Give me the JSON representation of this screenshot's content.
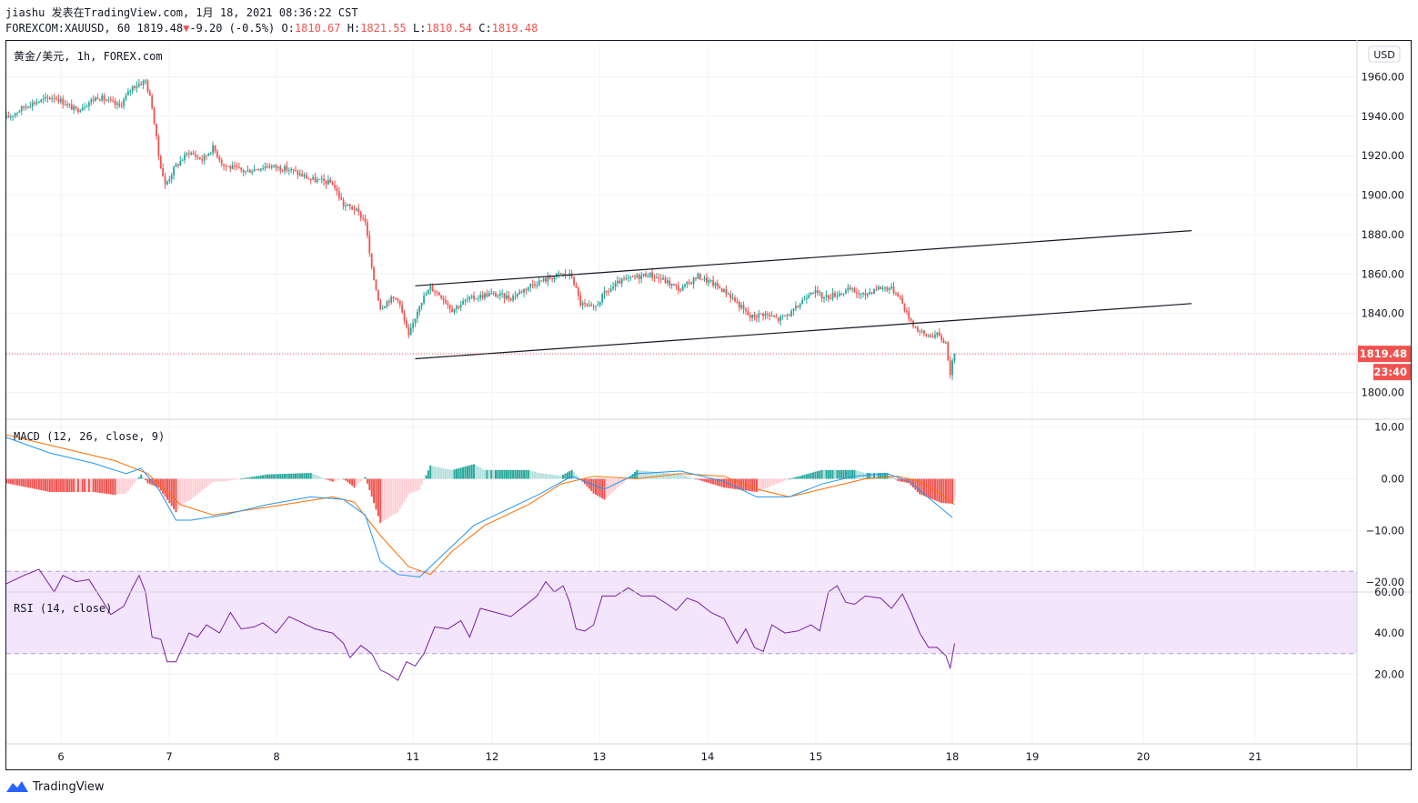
{
  "header": {
    "line1": "jiashu 发表在TradingView.com, 1月 18, 2021 08:36:22 CST",
    "symbol_info": "FOREXCOM:XAUUSD, 60 1819.48",
    "change_arrow": "▼",
    "change": "-9.20 (-0.5%)",
    "o_label": "O:",
    "o_value": "1810.67",
    "h_label": "H:",
    "h_value": "1821.55",
    "l_label": "L:",
    "l_value": "1810.54",
    "c_label": "C:",
    "c_value": "1819.48"
  },
  "main_pane": {
    "title": "黄金/美元, 1h, FOREX.com",
    "currency": "USD",
    "last_price": "1819.48",
    "countdown": "23:40"
  },
  "macd_pane": {
    "title": "MACD (12, 26, close, 9)"
  },
  "rsi_pane": {
    "title": "RSI (14, close)"
  },
  "footer": {
    "brand": "TradingView",
    "logo_icon": "tradingview-logo-icon"
  },
  "colors": {
    "up": "#26a69a",
    "down": "#ef5350",
    "macd": "#2196f3",
    "signal": "#ff6d00",
    "rsi": "#7b1fa2",
    "rsi_band": "#f3e5fb"
  },
  "chart_data": [
    {
      "type": "candlestick",
      "title": "黄金/美元, 1h, FOREX.com",
      "y_ticks": [
        "1800.00",
        "1820.00",
        "1840.00",
        "1860.00",
        "1880.00",
        "1900.00",
        "1920.00",
        "1940.00",
        "1960.00"
      ],
      "x_ticks": [
        "6",
        "7",
        "8",
        "11",
        "12",
        "13",
        "14",
        "15",
        "18",
        "19",
        "20",
        "21"
      ],
      "ylim": [
        1790,
        1968
      ],
      "last_price": 1819.48,
      "close_path": [
        {
          "x": 0,
          "y": 1939
        },
        {
          "x": 10,
          "y": 1946
        },
        {
          "x": 22,
          "y": 1950
        },
        {
          "x": 32,
          "y": 1943
        },
        {
          "x": 42,
          "y": 1950
        },
        {
          "x": 52,
          "y": 1945
        },
        {
          "x": 58,
          "y": 1955
        },
        {
          "x": 64,
          "y": 1958
        },
        {
          "x": 67,
          "y": 1945
        },
        {
          "x": 70,
          "y": 1920
        },
        {
          "x": 73,
          "y": 1905
        },
        {
          "x": 78,
          "y": 1915
        },
        {
          "x": 84,
          "y": 1922
        },
        {
          "x": 90,
          "y": 1918
        },
        {
          "x": 95,
          "y": 1924
        },
        {
          "x": 100,
          "y": 1915
        },
        {
          "x": 110,
          "y": 1912
        },
        {
          "x": 120,
          "y": 1915
        },
        {
          "x": 130,
          "y": 1913
        },
        {
          "x": 140,
          "y": 1908
        },
        {
          "x": 150,
          "y": 1906
        },
        {
          "x": 155,
          "y": 1895
        },
        {
          "x": 160,
          "y": 1893
        },
        {
          "x": 165,
          "y": 1887
        },
        {
          "x": 168,
          "y": 1862
        },
        {
          "x": 172,
          "y": 1843
        },
        {
          "x": 176,
          "y": 1847
        },
        {
          "x": 180,
          "y": 1848
        },
        {
          "x": 185,
          "y": 1828
        },
        {
          "x": 190,
          "y": 1845
        },
        {
          "x": 195,
          "y": 1853
        },
        {
          "x": 200,
          "y": 1849
        },
        {
          "x": 205,
          "y": 1842
        },
        {
          "x": 212,
          "y": 1847
        },
        {
          "x": 222,
          "y": 1850
        },
        {
          "x": 232,
          "y": 1848
        },
        {
          "x": 242,
          "y": 1855
        },
        {
          "x": 250,
          "y": 1858
        },
        {
          "x": 255,
          "y": 1860
        },
        {
          "x": 260,
          "y": 1859
        },
        {
          "x": 264,
          "y": 1845
        },
        {
          "x": 270,
          "y": 1842
        },
        {
          "x": 275,
          "y": 1850
        },
        {
          "x": 282,
          "y": 1856
        },
        {
          "x": 288,
          "y": 1858
        },
        {
          "x": 295,
          "y": 1860
        },
        {
          "x": 302,
          "y": 1857
        },
        {
          "x": 310,
          "y": 1852
        },
        {
          "x": 318,
          "y": 1859
        },
        {
          "x": 325,
          "y": 1855
        },
        {
          "x": 332,
          "y": 1850
        },
        {
          "x": 338,
          "y": 1843
        },
        {
          "x": 342,
          "y": 1838
        },
        {
          "x": 348,
          "y": 1840
        },
        {
          "x": 355,
          "y": 1837
        },
        {
          "x": 362,
          "y": 1841
        },
        {
          "x": 370,
          "y": 1852
        },
        {
          "x": 376,
          "y": 1848
        },
        {
          "x": 382,
          "y": 1850
        },
        {
          "x": 388,
          "y": 1852
        },
        {
          "x": 394,
          "y": 1849
        },
        {
          "x": 400,
          "y": 1853
        },
        {
          "x": 406,
          "y": 1853
        },
        {
          "x": 410,
          "y": 1850
        },
        {
          "x": 414,
          "y": 1840
        },
        {
          "x": 418,
          "y": 1833
        },
        {
          "x": 422,
          "y": 1829
        },
        {
          "x": 428,
          "y": 1829
        },
        {
          "x": 432,
          "y": 1825
        },
        {
          "x": 434,
          "y": 1810
        },
        {
          "x": 436,
          "y": 1819.48
        }
      ],
      "annotations": [
        {
          "type": "trendline",
          "points": [
            {
              "x": 188,
              "y": 1854
            },
            {
              "x": 545,
              "y": 1882
            }
          ]
        },
        {
          "type": "trendline",
          "points": [
            {
              "x": 188,
              "y": 1817
            },
            {
              "x": 545,
              "y": 1845
            }
          ]
        }
      ]
    },
    {
      "type": "histogram+line",
      "title": "MACD (12, 26, close, 9)",
      "y_ticks": [
        "10.00",
        "0.00",
        "−10.00",
        "−20.00"
      ],
      "ylim": [
        -22,
        11
      ],
      "macd": [
        {
          "x": 0,
          "y": 8
        },
        {
          "x": 20,
          "y": 5
        },
        {
          "x": 40,
          "y": 3
        },
        {
          "x": 55,
          "y": 1
        },
        {
          "x": 62,
          "y": 2
        },
        {
          "x": 70,
          "y": -2
        },
        {
          "x": 78,
          "y": -8
        },
        {
          "x": 85,
          "y": -8
        },
        {
          "x": 100,
          "y": -7
        },
        {
          "x": 120,
          "y": -5
        },
        {
          "x": 140,
          "y": -3.5
        },
        {
          "x": 155,
          "y": -4
        },
        {
          "x": 165,
          "y": -7
        },
        {
          "x": 172,
          "y": -16
        },
        {
          "x": 180,
          "y": -18.5
        },
        {
          "x": 190,
          "y": -19
        },
        {
          "x": 200,
          "y": -15
        },
        {
          "x": 215,
          "y": -9
        },
        {
          "x": 230,
          "y": -6
        },
        {
          "x": 245,
          "y": -3
        },
        {
          "x": 260,
          "y": 0.5
        },
        {
          "x": 275,
          "y": -2
        },
        {
          "x": 290,
          "y": 1
        },
        {
          "x": 310,
          "y": 1.5
        },
        {
          "x": 330,
          "y": -0.5
        },
        {
          "x": 345,
          "y": -3.5
        },
        {
          "x": 360,
          "y": -3.5
        },
        {
          "x": 375,
          "y": -1
        },
        {
          "x": 390,
          "y": 0.5
        },
        {
          "x": 405,
          "y": 1
        },
        {
          "x": 415,
          "y": -0.5
        },
        {
          "x": 425,
          "y": -4
        },
        {
          "x": 435,
          "y": -7.5
        }
      ],
      "signal": [
        {
          "x": 0,
          "y": 8.5
        },
        {
          "x": 25,
          "y": 6
        },
        {
          "x": 50,
          "y": 3.5
        },
        {
          "x": 65,
          "y": 1
        },
        {
          "x": 80,
          "y": -5
        },
        {
          "x": 95,
          "y": -7
        },
        {
          "x": 120,
          "y": -5.5
        },
        {
          "x": 150,
          "y": -3.5
        },
        {
          "x": 160,
          "y": -4.5
        },
        {
          "x": 172,
          "y": -11
        },
        {
          "x": 185,
          "y": -17
        },
        {
          "x": 195,
          "y": -18.5
        },
        {
          "x": 205,
          "y": -14
        },
        {
          "x": 220,
          "y": -9
        },
        {
          "x": 240,
          "y": -5
        },
        {
          "x": 255,
          "y": -1
        },
        {
          "x": 270,
          "y": 0.5
        },
        {
          "x": 290,
          "y": 0
        },
        {
          "x": 310,
          "y": 1
        },
        {
          "x": 330,
          "y": 0.5
        },
        {
          "x": 345,
          "y": -2
        },
        {
          "x": 360,
          "y": -3.5
        },
        {
          "x": 375,
          "y": -2
        },
        {
          "x": 395,
          "y": 0
        },
        {
          "x": 410,
          "y": 0.5
        },
        {
          "x": 420,
          "y": -0.5
        },
        {
          "x": 430,
          "y": -3
        },
        {
          "x": 436,
          "y": -5
        }
      ]
    },
    {
      "type": "line",
      "title": "RSI (14, close)",
      "y_ticks": [
        "60.00",
        "40.00",
        "20.00"
      ],
      "ylim": [
        13,
        75
      ],
      "bands": [
        30,
        70
      ],
      "values": [
        {
          "x": 0,
          "y": 64
        },
        {
          "x": 8,
          "y": 68
        },
        {
          "x": 15,
          "y": 71
        },
        {
          "x": 22,
          "y": 60
        },
        {
          "x": 26,
          "y": 68
        },
        {
          "x": 32,
          "y": 65
        },
        {
          "x": 38,
          "y": 66
        },
        {
          "x": 44,
          "y": 56
        },
        {
          "x": 48,
          "y": 49
        },
        {
          "x": 54,
          "y": 53
        },
        {
          "x": 58,
          "y": 62
        },
        {
          "x": 61,
          "y": 68
        },
        {
          "x": 64,
          "y": 60
        },
        {
          "x": 67,
          "y": 38
        },
        {
          "x": 71,
          "y": 37
        },
        {
          "x": 74,
          "y": 26
        },
        {
          "x": 78,
          "y": 26
        },
        {
          "x": 84,
          "y": 40
        },
        {
          "x": 88,
          "y": 38
        },
        {
          "x": 92,
          "y": 44
        },
        {
          "x": 98,
          "y": 40
        },
        {
          "x": 103,
          "y": 50
        },
        {
          "x": 108,
          "y": 42
        },
        {
          "x": 114,
          "y": 43
        },
        {
          "x": 118,
          "y": 45
        },
        {
          "x": 124,
          "y": 40
        },
        {
          "x": 130,
          "y": 48
        },
        {
          "x": 136,
          "y": 45
        },
        {
          "x": 142,
          "y": 42
        },
        {
          "x": 150,
          "y": 40
        },
        {
          "x": 155,
          "y": 35
        },
        {
          "x": 158,
          "y": 28
        },
        {
          "x": 163,
          "y": 34
        },
        {
          "x": 168,
          "y": 30
        },
        {
          "x": 172,
          "y": 22
        },
        {
          "x": 176,
          "y": 20
        },
        {
          "x": 180,
          "y": 17
        },
        {
          "x": 184,
          "y": 26
        },
        {
          "x": 188,
          "y": 24
        },
        {
          "x": 192,
          "y": 30
        },
        {
          "x": 197,
          "y": 43
        },
        {
          "x": 203,
          "y": 42
        },
        {
          "x": 209,
          "y": 46
        },
        {
          "x": 213,
          "y": 38
        },
        {
          "x": 218,
          "y": 52
        },
        {
          "x": 225,
          "y": 50
        },
        {
          "x": 232,
          "y": 48
        },
        {
          "x": 238,
          "y": 53
        },
        {
          "x": 244,
          "y": 58
        },
        {
          "x": 248,
          "y": 65
        },
        {
          "x": 252,
          "y": 60
        },
        {
          "x": 256,
          "y": 63
        },
        {
          "x": 259,
          "y": 55
        },
        {
          "x": 262,
          "y": 42
        },
        {
          "x": 266,
          "y": 41
        },
        {
          "x": 270,
          "y": 44
        },
        {
          "x": 274,
          "y": 58
        },
        {
          "x": 280,
          "y": 58
        },
        {
          "x": 286,
          "y": 62
        },
        {
          "x": 292,
          "y": 58
        },
        {
          "x": 298,
          "y": 58
        },
        {
          "x": 304,
          "y": 54
        },
        {
          "x": 308,
          "y": 51
        },
        {
          "x": 313,
          "y": 57
        },
        {
          "x": 318,
          "y": 55
        },
        {
          "x": 324,
          "y": 50
        },
        {
          "x": 330,
          "y": 47
        },
        {
          "x": 336,
          "y": 35
        },
        {
          "x": 340,
          "y": 42
        },
        {
          "x": 344,
          "y": 33
        },
        {
          "x": 348,
          "y": 31
        },
        {
          "x": 352,
          "y": 44
        },
        {
          "x": 358,
          "y": 40
        },
        {
          "x": 364,
          "y": 41
        },
        {
          "x": 370,
          "y": 44
        },
        {
          "x": 374,
          "y": 41
        },
        {
          "x": 378,
          "y": 60
        },
        {
          "x": 382,
          "y": 63
        },
        {
          "x": 386,
          "y": 55
        },
        {
          "x": 390,
          "y": 54
        },
        {
          "x": 395,
          "y": 58
        },
        {
          "x": 402,
          "y": 57
        },
        {
          "x": 407,
          "y": 52
        },
        {
          "x": 412,
          "y": 59
        },
        {
          "x": 416,
          "y": 50
        },
        {
          "x": 420,
          "y": 40
        },
        {
          "x": 424,
          "y": 33
        },
        {
          "x": 428,
          "y": 33
        },
        {
          "x": 432,
          "y": 29
        },
        {
          "x": 434,
          "y": 23
        },
        {
          "x": 436,
          "y": 35
        }
      ]
    }
  ]
}
